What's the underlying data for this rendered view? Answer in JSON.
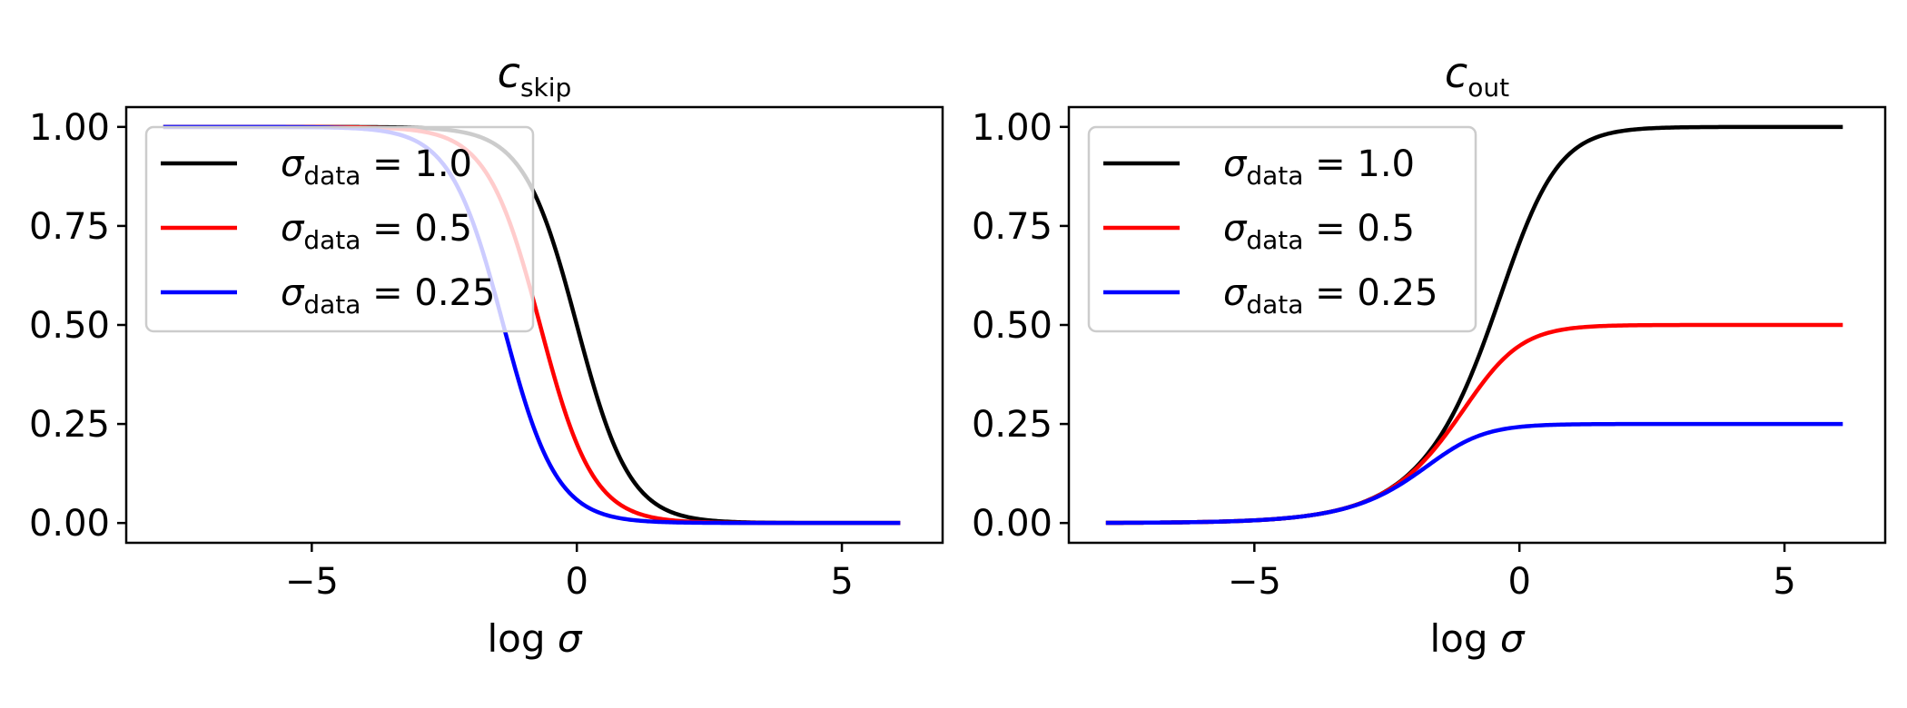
{
  "chart_data": [
    {
      "type": "line",
      "title": "c_skip",
      "title_symbol": "c",
      "title_subscript": "skip",
      "xlabel": "log σ",
      "xlabel_prefix": "log",
      "xlabel_symbol": "σ",
      "ylabel": "",
      "xlim": [
        -8.5,
        6.9
      ],
      "ylim": [
        -0.05,
        1.05
      ],
      "xticks": [
        -5,
        0,
        5
      ],
      "xtick_labels": [
        "−5",
        "0",
        "5"
      ],
      "yticks": [
        0,
        0.25,
        0.5,
        0.75,
        1.0
      ],
      "ytick_labels": [
        "0.00",
        "0.25",
        "0.50",
        "0.75",
        "1.00"
      ],
      "x_range": [
        -7.8,
        6.1
      ],
      "formula": "sigma_data^2 / (sigma^2 + sigma_data^2), sigma = exp(x)",
      "grid": false,
      "legend_position": "upper left",
      "series": [
        {
          "name": "σ_data = 1.0",
          "legend_symbol": "σ",
          "legend_subscript": "data",
          "legend_value": "= 1.0",
          "sigma_data": 1.0,
          "color": "#000000"
        },
        {
          "name": "σ_data = 0.5",
          "legend_symbol": "σ",
          "legend_subscript": "data",
          "legend_value": "= 0.5",
          "sigma_data": 0.5,
          "color": "#ff0000"
        },
        {
          "name": "σ_data = 0.25",
          "legend_symbol": "σ",
          "legend_subscript": "data",
          "legend_value": "= 0.25",
          "sigma_data": 0.25,
          "color": "#0000ff"
        }
      ]
    },
    {
      "type": "line",
      "title": "c_out",
      "title_symbol": "c",
      "title_subscript": "out",
      "xlabel": "log σ",
      "xlabel_prefix": "log",
      "xlabel_symbol": "σ",
      "ylabel": "",
      "xlim": [
        -8.5,
        6.9
      ],
      "ylim": [
        -0.05,
        1.05
      ],
      "xticks": [
        -5,
        0,
        5
      ],
      "xtick_labels": [
        "−5",
        "0",
        "5"
      ],
      "yticks": [
        0,
        0.25,
        0.5,
        0.75,
        1.0
      ],
      "ytick_labels": [
        "0.00",
        "0.25",
        "0.50",
        "0.75",
        "1.00"
      ],
      "x_range": [
        -7.8,
        6.1
      ],
      "formula": "sigma * sigma_data / sqrt(sigma^2 + sigma_data^2), sigma = exp(x)",
      "grid": false,
      "legend_position": "upper left",
      "series": [
        {
          "name": "σ_data = 1.0",
          "legend_symbol": "σ",
          "legend_subscript": "data",
          "legend_value": "= 1.0",
          "sigma_data": 1.0,
          "color": "#000000"
        },
        {
          "name": "σ_data = 0.5",
          "legend_symbol": "σ",
          "legend_subscript": "data",
          "legend_value": "= 0.5",
          "sigma_data": 0.5,
          "color": "#ff0000"
        },
        {
          "name": "σ_data = 0.25",
          "legend_symbol": "σ",
          "legend_subscript": "data",
          "legend_value": "= 0.25",
          "sigma_data": 0.25,
          "color": "#0000ff"
        }
      ]
    }
  ]
}
